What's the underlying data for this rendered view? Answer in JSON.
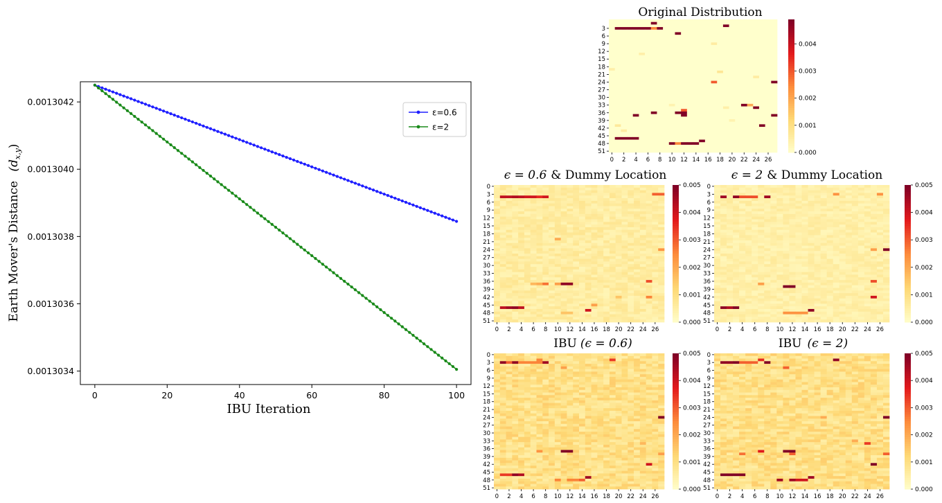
{
  "chart_data": [
    {
      "type": "line",
      "xlabel": "IBU Iteration",
      "ylabel": "Earth Mover's Distance",
      "ylabel_math": "(d",
      "ylabel_sub": "x,y",
      "ylabel_close": ")",
      "xlim": [
        -4,
        104
      ],
      "ylim": [
        0.00130336,
        0.00130426
      ],
      "xticks": [
        0,
        20,
        40,
        60,
        80,
        100
      ],
      "yticks": [
        0.0013034,
        0.0013036,
        0.0013038,
        0.001304,
        0.0013042
      ],
      "ytick_labels": [
        "0.0013034",
        "0.0013036",
        "0.0013038",
        "0.0013040",
        "0.0013042"
      ],
      "grid": false,
      "legend_position": "top-right",
      "series": [
        {
          "name": "ε=0.6",
          "color": "#1f1fff",
          "x_start": 0,
          "x_end": 100,
          "y_start": 0.00130425,
          "y_end": 0.001303845
        },
        {
          "name": "ε=2",
          "color": "#1a8a1a",
          "x_start": 0,
          "x_end": 100,
          "y_start": 0.00130425,
          "y_end": 0.001303405
        }
      ]
    },
    {
      "type": "heatmap",
      "title": "Original Distribution",
      "rows": 52,
      "cols": 28,
      "yticks": [
        3,
        6,
        9,
        12,
        15,
        18,
        21,
        24,
        27,
        30,
        33,
        36,
        39,
        42,
        45,
        48,
        51
      ],
      "xticks": [
        0,
        2,
        4,
        6,
        8,
        10,
        12,
        14,
        16,
        18,
        20,
        22,
        24,
        26
      ],
      "colorbar_ticks": [
        0.0,
        0.001,
        0.002,
        0.003,
        0.004
      ],
      "colorbar_labels": [
        "0.000",
        "0.001",
        "0.002",
        "0.003",
        "0.004"
      ],
      "vmax": 0.0049,
      "base": 0.0,
      "hotspots": [
        [
          1,
          7,
          0.0049
        ],
        [
          3,
          1,
          0.0049
        ],
        [
          3,
          2,
          0.0049
        ],
        [
          3,
          3,
          0.0049
        ],
        [
          3,
          4,
          0.0049
        ],
        [
          3,
          5,
          0.0049
        ],
        [
          3,
          6,
          0.0049
        ],
        [
          3,
          7,
          0.0025
        ],
        [
          3,
          8,
          0.0049
        ],
        [
          2,
          19,
          0.0049
        ],
        [
          5,
          11,
          0.0049
        ],
        [
          37,
          4,
          0.0049
        ],
        [
          36,
          7,
          0.0049
        ],
        [
          36,
          11,
          0.0049
        ],
        [
          36,
          12,
          0.0049
        ],
        [
          37,
          12,
          0.0049
        ],
        [
          35,
          12,
          0.003
        ],
        [
          33,
          22,
          0.0049
        ],
        [
          33,
          23,
          0.002
        ],
        [
          34,
          24,
          0.0049
        ],
        [
          37,
          27,
          0.0049
        ],
        [
          41,
          25,
          0.0049
        ],
        [
          46,
          1,
          0.0049
        ],
        [
          46,
          2,
          0.0049
        ],
        [
          46,
          3,
          0.0049
        ],
        [
          46,
          4,
          0.0049
        ],
        [
          47,
          15,
          0.0049
        ],
        [
          48,
          10,
          0.0049
        ],
        [
          48,
          11,
          0.0025
        ],
        [
          48,
          12,
          0.0049
        ],
        [
          48,
          13,
          0.0049
        ],
        [
          48,
          14,
          0.0049
        ],
        [
          24,
          17,
          0.003
        ],
        [
          24,
          27,
          0.0049
        ],
        [
          16,
          28,
          0.0006
        ],
        [
          20,
          18,
          0.0008
        ],
        [
          9,
          17,
          0.0006
        ],
        [
          13,
          5,
          0.0005
        ],
        [
          22,
          24,
          0.0006
        ],
        [
          41,
          1,
          0.0007
        ],
        [
          43,
          2,
          0.0006
        ],
        [
          19,
          0,
          0.0005
        ],
        [
          39,
          20,
          0.0004
        ],
        [
          33,
          10,
          0.0004
        ],
        [
          34,
          19,
          0.0005
        ]
      ]
    },
    {
      "type": "heatmap",
      "title": "ϵ = 0.6 & Dummy Location",
      "title_parts": [
        "ϵ = 0.6",
        "& Dummy Location"
      ],
      "rows": 52,
      "cols": 28,
      "yticks": [
        0,
        3,
        6,
        9,
        12,
        15,
        18,
        21,
        24,
        27,
        30,
        33,
        36,
        39,
        42,
        45,
        48,
        51
      ],
      "xticks": [
        0,
        2,
        4,
        6,
        8,
        10,
        12,
        14,
        16,
        18,
        20,
        22,
        24,
        26
      ],
      "colorbar_ticks": [
        0.0,
        0.001,
        0.002,
        0.003,
        0.004,
        0.005
      ],
      "colorbar_labels": [
        "0.000",
        "0.001",
        "0.002",
        "0.003",
        "0.004",
        "0.005"
      ],
      "vmax": 0.005,
      "base": 0.0006,
      "hotspots": [
        [
          4,
          1,
          0.0042
        ],
        [
          4,
          2,
          0.0042
        ],
        [
          4,
          3,
          0.0044
        ],
        [
          4,
          4,
          0.0042
        ],
        [
          4,
          5,
          0.004
        ],
        [
          4,
          6,
          0.004
        ],
        [
          4,
          7,
          0.0036
        ],
        [
          4,
          8,
          0.004
        ],
        [
          3,
          26,
          0.003
        ],
        [
          3,
          27,
          0.003
        ],
        [
          20,
          10,
          0.002
        ],
        [
          24,
          27,
          0.0024
        ],
        [
          37,
          6,
          0.0018
        ],
        [
          37,
          7,
          0.002
        ],
        [
          37,
          8,
          0.0028
        ],
        [
          37,
          10,
          0.0022
        ],
        [
          37,
          11,
          0.0048
        ],
        [
          37,
          12,
          0.0048
        ],
        [
          36,
          25,
          0.0032
        ],
        [
          42,
          25,
          0.0026
        ],
        [
          46,
          1,
          0.0042
        ],
        [
          46,
          2,
          0.0046
        ],
        [
          46,
          3,
          0.0048
        ],
        [
          46,
          4,
          0.0042
        ],
        [
          47,
          15,
          0.004
        ],
        [
          45,
          16,
          0.0022
        ],
        [
          48,
          11,
          0.0016
        ],
        [
          48,
          12,
          0.0016
        ],
        [
          42,
          20,
          0.0016
        ]
      ]
    },
    {
      "type": "heatmap",
      "title": "ϵ = 2 & Dummy Location",
      "title_parts": [
        "ϵ = 2",
        "& Dummy Location"
      ],
      "rows": 52,
      "cols": 28,
      "yticks": [
        0,
        3,
        6,
        9,
        12,
        15,
        18,
        21,
        24,
        27,
        30,
        33,
        36,
        39,
        42,
        45,
        48,
        51
      ],
      "xticks": [
        0,
        2,
        4,
        6,
        8,
        10,
        12,
        14,
        16,
        18,
        20,
        22,
        24,
        26
      ],
      "colorbar_ticks": [
        0.0,
        0.001,
        0.002,
        0.003,
        0.004,
        0.005
      ],
      "colorbar_labels": [
        "0.000",
        "0.001",
        "0.002",
        "0.003",
        "0.004",
        "0.005"
      ],
      "vmax": 0.005,
      "base": 0.0005,
      "hotspots": [
        [
          4,
          1,
          0.0046
        ],
        [
          4,
          3,
          0.0048
        ],
        [
          4,
          4,
          0.0032
        ],
        [
          4,
          5,
          0.0032
        ],
        [
          4,
          6,
          0.0032
        ],
        [
          4,
          8,
          0.0046
        ],
        [
          3,
          19,
          0.0024
        ],
        [
          3,
          26,
          0.0024
        ],
        [
          24,
          27,
          0.005
        ],
        [
          24,
          25,
          0.0022
        ],
        [
          37,
          7,
          0.0022
        ],
        [
          38,
          11,
          0.005
        ],
        [
          38,
          12,
          0.005
        ],
        [
          36,
          25,
          0.0032
        ],
        [
          42,
          25,
          0.004
        ],
        [
          46,
          1,
          0.0048
        ],
        [
          46,
          2,
          0.0044
        ],
        [
          46,
          3,
          0.005
        ],
        [
          47,
          15,
          0.0048
        ],
        [
          48,
          11,
          0.0024
        ],
        [
          48,
          12,
          0.0024
        ],
        [
          48,
          13,
          0.0024
        ],
        [
          48,
          14,
          0.0024
        ]
      ]
    },
    {
      "type": "heatmap",
      "title": "IBU (ϵ = 0.6)",
      "title_parts": [
        "IBU",
        "(ϵ = 0.6)"
      ],
      "rows": 52,
      "cols": 28,
      "yticks": [
        0,
        3,
        6,
        9,
        12,
        15,
        18,
        21,
        24,
        27,
        30,
        33,
        36,
        39,
        42,
        45,
        48,
        51
      ],
      "xticks": [
        0,
        2,
        4,
        6,
        8,
        10,
        12,
        14,
        16,
        18,
        20,
        22,
        24,
        26
      ],
      "colorbar_ticks": [
        0.0,
        0.001,
        0.002,
        0.003,
        0.004,
        0.005
      ],
      "colorbar_labels": [
        "0.000",
        "0.001",
        "0.002",
        "0.003",
        "0.004",
        "0.005"
      ],
      "vmax": 0.005,
      "base": 0.001,
      "hotspots": [
        [
          3,
          1,
          0.0048
        ],
        [
          3,
          2,
          0.003
        ],
        [
          3,
          3,
          0.0048
        ],
        [
          3,
          4,
          0.0026
        ],
        [
          3,
          5,
          0.0026
        ],
        [
          3,
          6,
          0.0026
        ],
        [
          3,
          7,
          0.0026
        ],
        [
          3,
          8,
          0.0046
        ],
        [
          2,
          7,
          0.0026
        ],
        [
          2,
          19,
          0.0034
        ],
        [
          5,
          11,
          0.0022
        ],
        [
          37,
          7,
          0.0024
        ],
        [
          37,
          11,
          0.005
        ],
        [
          37,
          12,
          0.005
        ],
        [
          34,
          24,
          0.0018
        ],
        [
          38,
          27,
          0.0022
        ],
        [
          42,
          25,
          0.004
        ],
        [
          46,
          1,
          0.0034
        ],
        [
          46,
          2,
          0.0034
        ],
        [
          46,
          3,
          0.0048
        ],
        [
          46,
          4,
          0.0044
        ],
        [
          47,
          15,
          0.0046
        ],
        [
          48,
          10,
          0.0026
        ],
        [
          48,
          12,
          0.0026
        ],
        [
          48,
          13,
          0.0026
        ],
        [
          48,
          14,
          0.003
        ],
        [
          24,
          27,
          0.005
        ]
      ]
    },
    {
      "type": "heatmap",
      "title": "IBU (ϵ = 2)",
      "title_parts": [
        "IBU",
        "(ϵ = 2)"
      ],
      "rows": 52,
      "cols": 28,
      "yticks": [
        0,
        3,
        6,
        9,
        12,
        15,
        18,
        21,
        24,
        27,
        30,
        33,
        36,
        39,
        42,
        45,
        48,
        51
      ],
      "xticks": [
        0,
        2,
        4,
        6,
        8,
        10,
        12,
        14,
        16,
        18,
        20,
        22,
        24,
        26
      ],
      "colorbar_ticks": [
        0.0,
        0.001,
        0.002,
        0.003,
        0.004,
        0.005
      ],
      "colorbar_labels": [
        "0.000",
        "0.001",
        "0.002",
        "0.003",
        "0.004",
        "0.005"
      ],
      "vmax": 0.005,
      "base": 0.001,
      "hotspots": [
        [
          3,
          1,
          0.0048
        ],
        [
          3,
          2,
          0.0048
        ],
        [
          3,
          3,
          0.005
        ],
        [
          3,
          4,
          0.003
        ],
        [
          3,
          5,
          0.003
        ],
        [
          3,
          6,
          0.003
        ],
        [
          3,
          8,
          0.005
        ],
        [
          2,
          7,
          0.0036
        ],
        [
          2,
          19,
          0.0048
        ],
        [
          5,
          11,
          0.003
        ],
        [
          24,
          17,
          0.002
        ],
        [
          24,
          27,
          0.005
        ],
        [
          33,
          22,
          0.002
        ],
        [
          34,
          24,
          0.0034
        ],
        [
          37,
          7,
          0.0038
        ],
        [
          37,
          11,
          0.005
        ],
        [
          37,
          12,
          0.005
        ],
        [
          38,
          12,
          0.003
        ],
        [
          38,
          4,
          0.0028
        ],
        [
          38,
          27,
          0.003
        ],
        [
          42,
          25,
          0.005
        ],
        [
          46,
          1,
          0.005
        ],
        [
          46,
          2,
          0.005
        ],
        [
          46,
          3,
          0.005
        ],
        [
          46,
          4,
          0.005
        ],
        [
          47,
          15,
          0.0046
        ],
        [
          48,
          10,
          0.0046
        ],
        [
          48,
          12,
          0.0046
        ],
        [
          48,
          13,
          0.004
        ],
        [
          48,
          14,
          0.004
        ]
      ]
    }
  ]
}
